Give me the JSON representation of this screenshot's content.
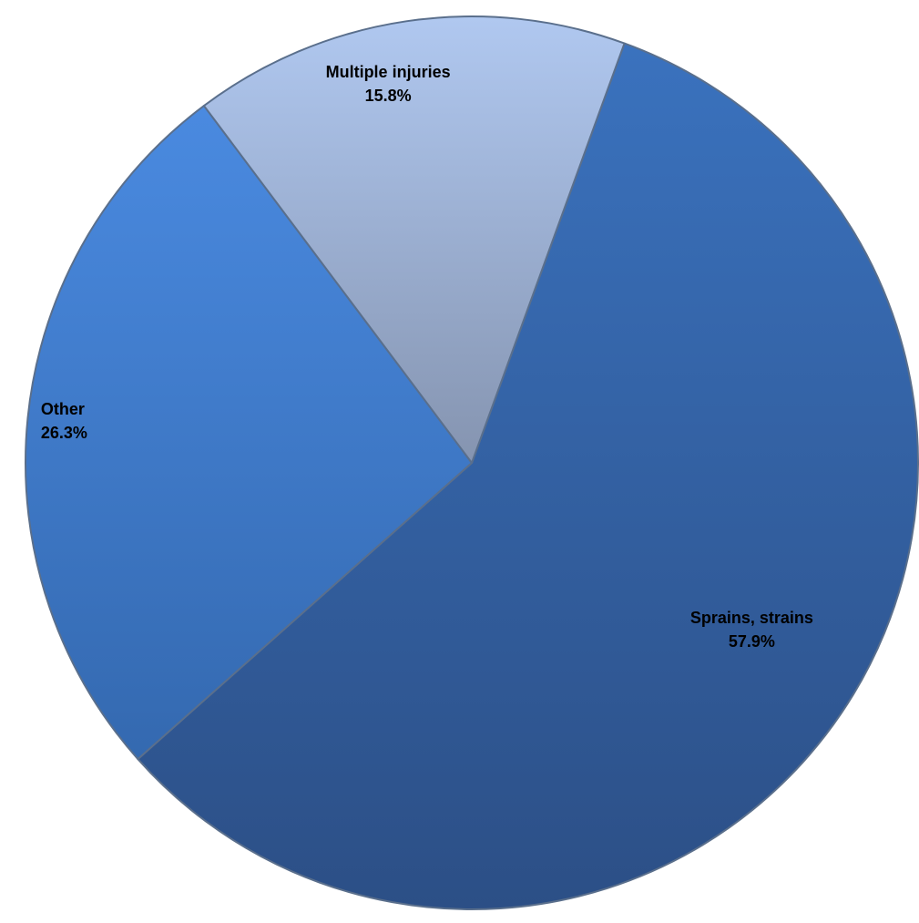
{
  "chart_data": {
    "type": "pie",
    "title": "",
    "start_angle_deg": 20,
    "direction": "clockwise",
    "slices": [
      {
        "label": "Sprains, strains",
        "value": 57.9,
        "value_label": "57.9%",
        "color": "#3767a8"
      },
      {
        "label": "Other",
        "value": 26.3,
        "value_label": "26.3%",
        "color": "#4380cf"
      },
      {
        "label": "Multiple injuries",
        "value": 15.8,
        "value_label": "15.8%",
        "color": "#9fb3dc"
      }
    ]
  }
}
